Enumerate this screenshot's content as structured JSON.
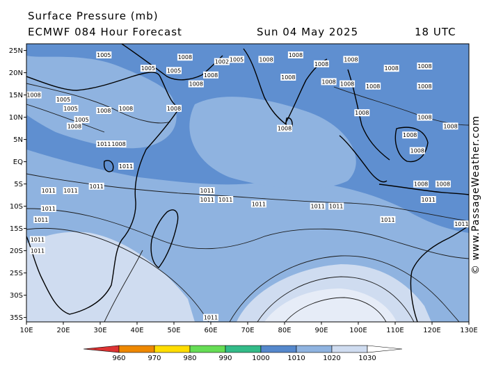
{
  "header": {
    "title": "Surface Pressure (mb)",
    "model": "ECMWF 084 Hour Forecast",
    "date": "Sun 04 May 2025",
    "time": "18 UTC"
  },
  "credit": "© www.PassageWeather.com",
  "axes": {
    "lon_labels": [
      "10E",
      "20E",
      "30E",
      "40E",
      "50E",
      "60E",
      "70E",
      "80E",
      "90E",
      "100E",
      "110E",
      "120E",
      "130E"
    ],
    "lat_labels": [
      "25N",
      "20N",
      "15N",
      "10N",
      "5N",
      "EQ",
      "5S",
      "10S",
      "15S",
      "20S",
      "25S",
      "30S",
      "35S"
    ]
  },
  "legend": {
    "ticks": [
      "960",
      "970",
      "980",
      "990",
      "1000",
      "1010",
      "1020",
      "1030"
    ],
    "colors": [
      "#dd3333",
      "#ee8800",
      "#ffdd00",
      "#66dd55",
      "#33bb88",
      "#5588cc",
      "#8fb3e0",
      "#cfdcf0"
    ]
  },
  "colors": {
    "low": "#5f8fd0",
    "mid": "#8fb3e0",
    "high": "#cfdcf0",
    "highest": "#e6ecf7",
    "land_line": "#000000"
  },
  "isobar_labels": [
    {
      "text": "1005",
      "lon": 31,
      "lat": 24.0
    },
    {
      "text": "1008",
      "lon": 53,
      "lat": 23.5
    },
    {
      "text": "1002",
      "lon": 63,
      "lat": 22.5
    },
    {
      "text": "1005",
      "lon": 67,
      "lat": 23.0
    },
    {
      "text": "1008",
      "lon": 75,
      "lat": 23.0
    },
    {
      "text": "1008",
      "lon": 83,
      "lat": 24.0
    },
    {
      "text": "1008",
      "lon": 90,
      "lat": 22.0
    },
    {
      "text": "1008",
      "lon": 98,
      "lat": 23.0
    },
    {
      "text": "1008",
      "lon": 109,
      "lat": 21.0
    },
    {
      "text": "1008",
      "lon": 118,
      "lat": 21.5
    },
    {
      "text": "1005",
      "lon": 43,
      "lat": 21.0
    },
    {
      "text": "1005",
      "lon": 50,
      "lat": 20.5
    },
    {
      "text": "1008",
      "lon": 60,
      "lat": 19.5
    },
    {
      "text": "1008",
      "lon": 81,
      "lat": 19.0
    },
    {
      "text": "1008",
      "lon": 92,
      "lat": 18.0
    },
    {
      "text": "1008",
      "lon": 97,
      "lat": 17.5
    },
    {
      "text": "1008",
      "lon": 104,
      "lat": 17.0
    },
    {
      "text": "1008",
      "lon": 118,
      "lat": 17.0
    },
    {
      "text": "1008",
      "lon": 56,
      "lat": 17.5
    },
    {
      "text": "1008",
      "lon": 12,
      "lat": 15.0
    },
    {
      "text": "1005",
      "lon": 20,
      "lat": 14.0
    },
    {
      "text": "1005",
      "lon": 22,
      "lat": 12.0
    },
    {
      "text": "1008",
      "lon": 31,
      "lat": 11.5
    },
    {
      "text": "1008",
      "lon": 37,
      "lat": 12.0
    },
    {
      "text": "1008",
      "lon": 50,
      "lat": 12.0
    },
    {
      "text": "1008",
      "lon": 101,
      "lat": 11.0
    },
    {
      "text": "1008",
      "lon": 118,
      "lat": 10.0
    },
    {
      "text": "1008",
      "lon": 125,
      "lat": 8.0
    },
    {
      "text": "1005",
      "lon": 25,
      "lat": 9.5
    },
    {
      "text": "1008",
      "lon": 23,
      "lat": 8.0
    },
    {
      "text": "1008",
      "lon": 80,
      "lat": 7.5
    },
    {
      "text": "1008",
      "lon": 114,
      "lat": 6.0
    },
    {
      "text": "1011",
      "lon": 31,
      "lat": 4.0
    },
    {
      "text": "1008",
      "lon": 35,
      "lat": 4.0
    },
    {
      "text": "1008",
      "lon": 116,
      "lat": 2.5
    },
    {
      "text": "1011",
      "lon": 37,
      "lat": -1.0
    },
    {
      "text": "1011",
      "lon": 16,
      "lat": -6.5
    },
    {
      "text": "1011",
      "lon": 22,
      "lat": -6.5
    },
    {
      "text": "1011",
      "lon": 29,
      "lat": -5.5
    },
    {
      "text": "1011",
      "lon": 59,
      "lat": -6.5
    },
    {
      "text": "1011",
      "lon": 59,
      "lat": -8.5
    },
    {
      "text": "1011",
      "lon": 64,
      "lat": -8.5
    },
    {
      "text": "1011",
      "lon": 73,
      "lat": -9.5
    },
    {
      "text": "1011",
      "lon": 89,
      "lat": -10.0
    },
    {
      "text": "1011",
      "lon": 94,
      "lat": -10.0
    },
    {
      "text": "1011",
      "lon": 16,
      "lat": -10.5
    },
    {
      "text": "1011",
      "lon": 14,
      "lat": -13.0
    },
    {
      "text": "1011",
      "lon": 108,
      "lat": -13.0
    },
    {
      "text": "1008",
      "lon": 117,
      "lat": -5.0
    },
    {
      "text": "1008",
      "lon": 123,
      "lat": -5.0
    },
    {
      "text": "1011",
      "lon": 119,
      "lat": -8.5
    },
    {
      "text": "1011",
      "lon": 128,
      "lat": -14.0
    },
    {
      "text": "1011",
      "lon": 13,
      "lat": -17.5
    },
    {
      "text": "1011",
      "lon": 13,
      "lat": -20.0
    },
    {
      "text": "1011",
      "lon": 60,
      "lat": -35.0
    }
  ]
}
